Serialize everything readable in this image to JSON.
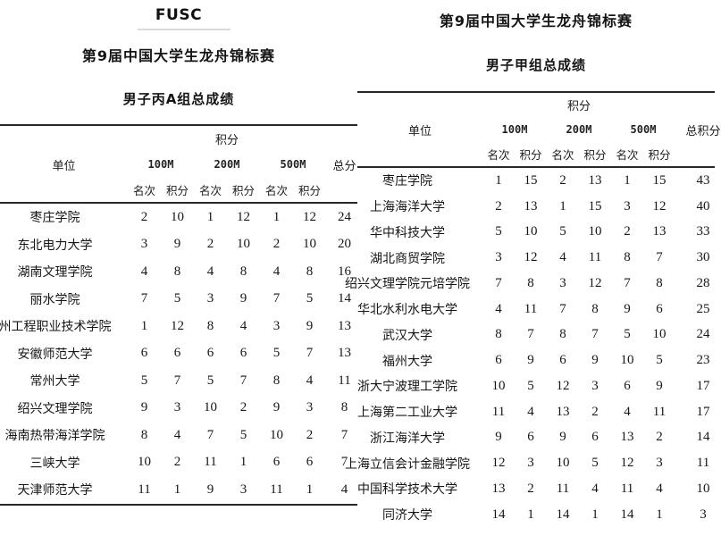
{
  "left_table": {
    "org": "FUSC",
    "title": "第9届中国大学生龙舟锦标赛",
    "subtitle": "男子丙A组总成绩",
    "headers": {
      "unit": "单位",
      "points_group": "积分",
      "rank": "名次",
      "score": "积分",
      "total": "总分",
      "distances": [
        "100M",
        "200M",
        "500M"
      ]
    },
    "rows": [
      {
        "name": "枣庄学院",
        "cells": [
          "2",
          "10",
          "1",
          "12",
          "1",
          "12",
          "24"
        ]
      },
      {
        "name": "东北电力大学",
        "cells": [
          "3",
          "9",
          "2",
          "10",
          "2",
          "10",
          "20"
        ]
      },
      {
        "name": "湖南文理学院",
        "cells": [
          "4",
          "8",
          "4",
          "8",
          "4",
          "8",
          "16"
        ]
      },
      {
        "name": "丽水学院",
        "cells": [
          "7",
          "5",
          "3",
          "9",
          "7",
          "5",
          "14"
        ]
      },
      {
        "name": "州工程职业技术学院",
        "cells": [
          "1",
          "12",
          "8",
          "4",
          "3",
          "9",
          "13"
        ]
      },
      {
        "name": "安徽师范大学",
        "cells": [
          "6",
          "6",
          "6",
          "6",
          "5",
          "7",
          "13"
        ]
      },
      {
        "name": "常州大学",
        "cells": [
          "5",
          "7",
          "5",
          "7",
          "8",
          "4",
          "11"
        ]
      },
      {
        "name": "绍兴文理学院",
        "cells": [
          "9",
          "3",
          "10",
          "2",
          "9",
          "3",
          "8"
        ]
      },
      {
        "name": "海南热带海洋学院",
        "cells": [
          "8",
          "4",
          "7",
          "5",
          "10",
          "2",
          "7"
        ]
      },
      {
        "name": "三峡大学",
        "cells": [
          "10",
          "2",
          "11",
          "1",
          "6",
          "6",
          "7"
        ]
      },
      {
        "name": "天津师范大学",
        "cells": [
          "11",
          "1",
          "9",
          "3",
          "11",
          "1",
          "4"
        ]
      }
    ]
  },
  "right_table": {
    "title": "第9届中国大学生龙舟锦标赛",
    "subtitle": "男子甲组总成绩",
    "headers": {
      "unit": "单位",
      "points_group": "积分",
      "rank": "名次",
      "score": "积分",
      "total": "总积分",
      "distances": [
        "100M",
        "200M",
        "500M"
      ]
    },
    "rows": [
      {
        "name": "枣庄学院",
        "cells": [
          "1",
          "15",
          "2",
          "13",
          "1",
          "15",
          "43"
        ]
      },
      {
        "name": "上海海洋大学",
        "cells": [
          "2",
          "13",
          "1",
          "15",
          "3",
          "12",
          "40"
        ]
      },
      {
        "name": "华中科技大学",
        "cells": [
          "5",
          "10",
          "5",
          "10",
          "2",
          "13",
          "33"
        ]
      },
      {
        "name": "湖北商贸学院",
        "cells": [
          "3",
          "12",
          "4",
          "11",
          "8",
          "7",
          "30"
        ]
      },
      {
        "name": "绍兴文理学院元培学院",
        "cells": [
          "7",
          "8",
          "3",
          "12",
          "7",
          "8",
          "28"
        ]
      },
      {
        "name": "华北水利水电大学",
        "cells": [
          "4",
          "11",
          "7",
          "8",
          "9",
          "6",
          "25"
        ]
      },
      {
        "name": "武汉大学",
        "cells": [
          "8",
          "7",
          "8",
          "7",
          "5",
          "10",
          "24"
        ]
      },
      {
        "name": "福州大学",
        "cells": [
          "6",
          "9",
          "6",
          "9",
          "10",
          "5",
          "23"
        ]
      },
      {
        "name": "浙大宁波理工学院",
        "cells": [
          "10",
          "5",
          "12",
          "3",
          "6",
          "9",
          "17"
        ]
      },
      {
        "name": "上海第二工业大学",
        "cells": [
          "11",
          "4",
          "13",
          "2",
          "4",
          "11",
          "17"
        ]
      },
      {
        "name": "浙江海洋大学",
        "cells": [
          "9",
          "6",
          "9",
          "6",
          "13",
          "2",
          "14"
        ]
      },
      {
        "name": "上海立信会计金融学院",
        "cells": [
          "12",
          "3",
          "10",
          "5",
          "12",
          "3",
          "11"
        ]
      },
      {
        "name": "中国科学技术大学",
        "cells": [
          "13",
          "2",
          "11",
          "4",
          "11",
          "4",
          "10"
        ]
      },
      {
        "name": "同济大学",
        "cells": [
          "14",
          "1",
          "14",
          "1",
          "14",
          "1",
          "3"
        ]
      }
    ]
  }
}
